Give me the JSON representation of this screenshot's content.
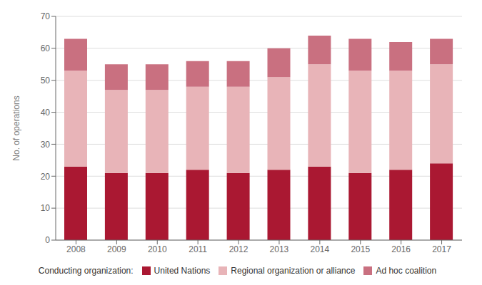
{
  "chart_data": {
    "type": "bar",
    "stacked": true,
    "categories": [
      "2008",
      "2009",
      "2010",
      "2011",
      "2012",
      "2013",
      "2014",
      "2015",
      "2016",
      "2017"
    ],
    "series": [
      {
        "name": "United Nations",
        "color": "#AA1832",
        "values": [
          23,
          21,
          21,
          22,
          21,
          22,
          23,
          21,
          22,
          24
        ]
      },
      {
        "name": "Regional organization or alliance",
        "color": "#E8B4B8",
        "values": [
          30,
          26,
          26,
          26,
          27,
          29,
          32,
          32,
          31,
          31
        ]
      },
      {
        "name": "Ad hoc coalition",
        "color": "#C97080",
        "values": [
          10,
          8,
          8,
          8,
          8,
          9,
          9,
          10,
          9,
          8
        ]
      }
    ],
    "y_label": "No. of operations",
    "legend_title": "Conducting organization:",
    "ylim": [
      0,
      70
    ],
    "yticks": [
      0,
      10,
      20,
      30,
      40,
      50,
      60,
      70
    ],
    "grid": true,
    "legend": "bottom"
  }
}
